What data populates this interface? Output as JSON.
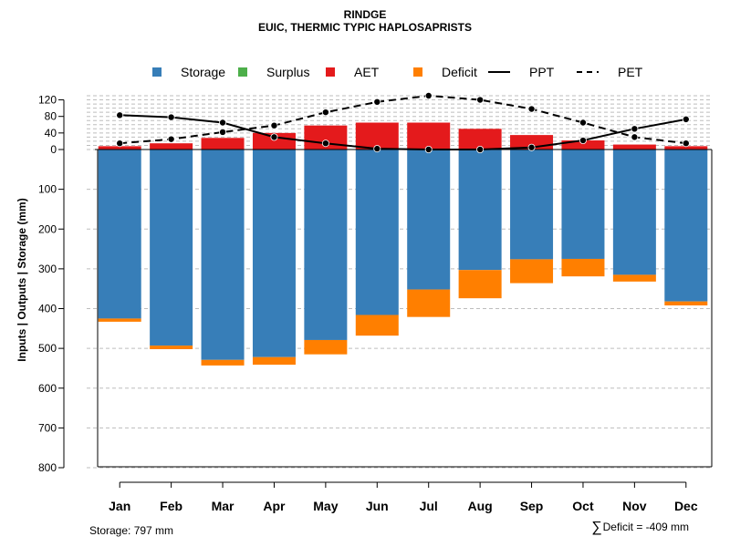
{
  "chart_data": {
    "type": "bar",
    "title": "RINDGE",
    "subtitle": "EUIC, THERMIC TYPIC HAPLOSAPRISTS",
    "ylabel": "Inputs | Outputs | Storage    (mm)",
    "xlabel": "",
    "categories": [
      "Jan",
      "Feb",
      "Mar",
      "Apr",
      "May",
      "Jun",
      "Jul",
      "Aug",
      "Sep",
      "Oct",
      "Nov",
      "Dec"
    ],
    "y_ticks_top": [
      "0",
      "40",
      "80",
      "120"
    ],
    "y_ticks_bottom": [
      "100",
      "200",
      "300",
      "400",
      "500",
      "600",
      "700",
      "800"
    ],
    "ylim_top": [
      0,
      130
    ],
    "ylim_bottom": [
      0,
      800
    ],
    "legend": [
      {
        "label": "Storage",
        "color": "#377EB8",
        "kind": "box"
      },
      {
        "label": "Surplus",
        "color": "#4DAF4A",
        "kind": "box"
      },
      {
        "label": "AET",
        "color": "#E41A1C",
        "kind": "box"
      },
      {
        "label": "Deficit",
        "color": "#FF7F00",
        "kind": "box"
      },
      {
        "label": "PPT",
        "color": "#000000",
        "kind": "solid"
      },
      {
        "label": "PET",
        "color": "#000000",
        "kind": "dashed"
      }
    ],
    "series": [
      {
        "name": "Storage",
        "color": "#377EB8",
        "values": [
          425,
          493,
          529,
          522,
          479,
          416,
          352,
          303,
          276,
          275,
          315,
          382
        ]
      },
      {
        "name": "Surplus",
        "color": "#4DAF4A",
        "values": [
          0,
          0,
          0,
          0,
          0,
          0,
          0,
          0,
          0,
          0,
          0,
          0
        ]
      },
      {
        "name": "AET",
        "color": "#E41A1C",
        "values": [
          8,
          15,
          28,
          40,
          58,
          65,
          65,
          50,
          35,
          22,
          12,
          8
        ]
      },
      {
        "name": "Deficit",
        "color": "#FF7F00",
        "values": [
          8,
          9,
          14,
          19,
          36,
          52,
          69,
          71,
          60,
          44,
          17,
          10
        ]
      },
      {
        "name": "PPT",
        "color": "#000000",
        "line": "solid",
        "values": [
          83,
          78,
          65,
          30,
          15,
          2,
          0,
          0,
          5,
          22,
          50,
          73
        ]
      },
      {
        "name": "PET",
        "color": "#000000",
        "line": "dashed",
        "values": [
          15,
          25,
          42,
          58,
          90,
          115,
          130,
          120,
          98,
          65,
          30,
          15
        ]
      }
    ]
  },
  "footer": {
    "storage_text": "Storage: 797 mm",
    "deficit_symbol": "∑",
    "deficit_text": "Deficit = -409 mm"
  }
}
